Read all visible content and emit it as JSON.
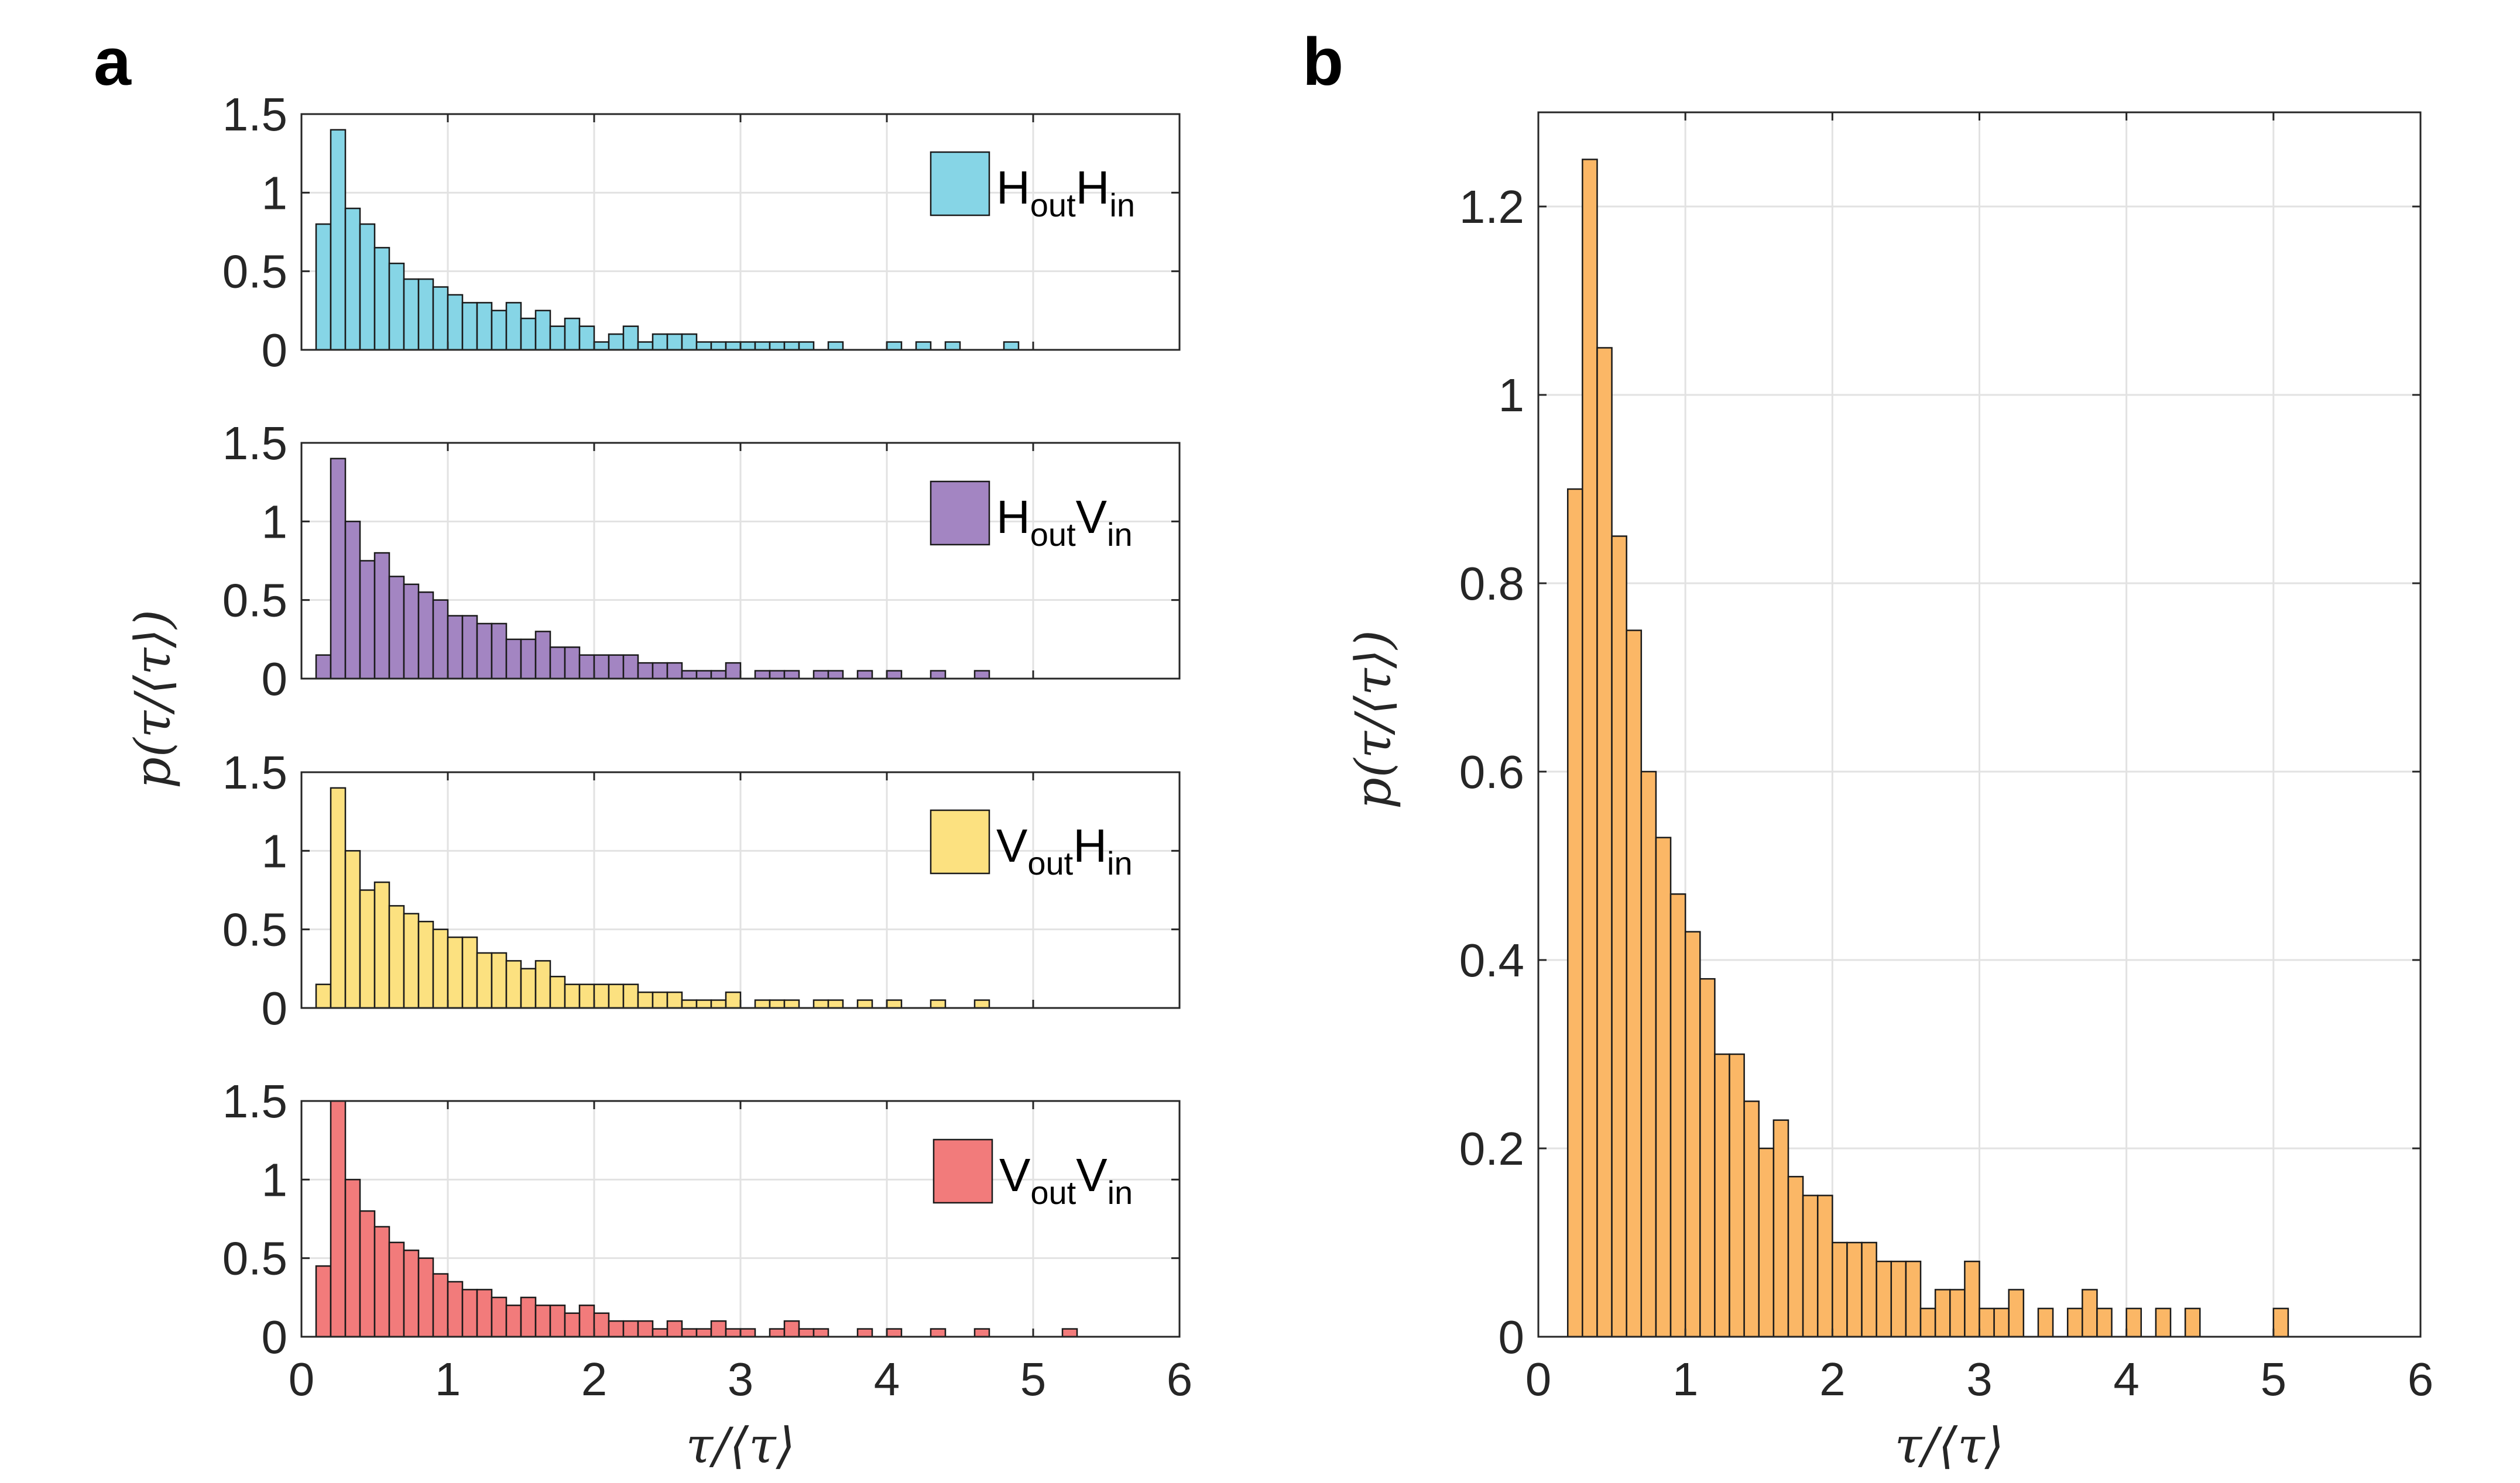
{
  "panels": {
    "a": {
      "label": "a"
    },
    "b": {
      "label": "b"
    }
  },
  "chart_data": [
    {
      "id": "a1",
      "type": "bar",
      "panel": "a",
      "legend": {
        "main1": "H",
        "sub1": "out",
        "main2": "H",
        "sub2": "in",
        "position": "top-right"
      },
      "color": "#86d5e6",
      "bin_width": 0.1,
      "x": [
        0.15,
        0.25,
        0.35,
        0.45,
        0.55,
        0.65,
        0.75,
        0.85,
        0.95,
        1.05,
        1.15,
        1.25,
        1.35,
        1.45,
        1.55,
        1.65,
        1.75,
        1.85,
        1.95,
        2.05,
        2.15,
        2.25,
        2.35,
        2.45,
        2.55,
        2.65,
        2.75,
        2.85,
        2.95,
        3.05,
        3.15,
        3.25,
        3.35,
        3.45,
        3.55,
        3.65,
        3.75,
        3.85,
        3.95,
        4.05,
        4.15,
        4.25,
        4.35,
        4.45,
        4.55,
        4.65,
        4.75,
        4.85,
        4.95
      ],
      "values": [
        0.8,
        1.4,
        0.9,
        0.8,
        0.65,
        0.55,
        0.45,
        0.45,
        0.4,
        0.35,
        0.3,
        0.3,
        0.25,
        0.3,
        0.2,
        0.25,
        0.15,
        0.2,
        0.15,
        0.05,
        0.1,
        0.15,
        0.05,
        0.1,
        0.1,
        0.1,
        0.05,
        0.05,
        0.05,
        0.05,
        0.05,
        0.05,
        0.05,
        0.05,
        0,
        0.05,
        0,
        0,
        0,
        0.05,
        0,
        0.05,
        0,
        0.05,
        0,
        0,
        0,
        0.05,
        0
      ],
      "xlim": [
        0,
        6
      ],
      "ylim": [
        0,
        1.5
      ],
      "yticks": [
        "0",
        "0.5",
        "1",
        "1.5"
      ],
      "ytick_values": [
        0,
        0.5,
        1,
        1.5
      ],
      "xticks": [],
      "xtick_values": [
        0,
        1,
        2,
        3,
        4,
        5,
        6
      ],
      "grid": true
    },
    {
      "id": "a2",
      "type": "bar",
      "panel": "a",
      "legend": {
        "main1": "H",
        "sub1": "out",
        "main2": "V",
        "sub2": "in",
        "position": "top-right"
      },
      "color": "#a385c2",
      "bin_width": 0.1,
      "x": [
        0.15,
        0.25,
        0.35,
        0.45,
        0.55,
        0.65,
        0.75,
        0.85,
        0.95,
        1.05,
        1.15,
        1.25,
        1.35,
        1.45,
        1.55,
        1.65,
        1.75,
        1.85,
        1.95,
        2.05,
        2.15,
        2.25,
        2.35,
        2.45,
        2.55,
        2.65,
        2.75,
        2.85,
        2.95,
        3.05,
        3.15,
        3.25,
        3.35,
        3.45,
        3.55,
        3.65,
        3.75,
        3.85,
        3.95,
        4.05,
        4.15,
        4.25,
        4.35,
        4.45,
        4.55,
        4.65
      ],
      "values": [
        0.15,
        1.4,
        1.0,
        0.75,
        0.8,
        0.65,
        0.6,
        0.55,
        0.5,
        0.4,
        0.4,
        0.35,
        0.35,
        0.25,
        0.25,
        0.3,
        0.2,
        0.2,
        0.15,
        0.15,
        0.15,
        0.15,
        0.1,
        0.1,
        0.1,
        0.05,
        0.05,
        0.05,
        0.1,
        0,
        0.05,
        0.05,
        0.05,
        0,
        0.05,
        0.05,
        0,
        0.05,
        0,
        0.05,
        0,
        0,
        0.05,
        0,
        0,
        0.05
      ],
      "xlim": [
        0,
        6
      ],
      "ylim": [
        0,
        1.5
      ],
      "yticks": [
        "0",
        "0.5",
        "1",
        "1.5"
      ],
      "ytick_values": [
        0,
        0.5,
        1,
        1.5
      ],
      "xticks": [],
      "xtick_values": [
        0,
        1,
        2,
        3,
        4,
        5,
        6
      ],
      "grid": true
    },
    {
      "id": "a3",
      "type": "bar",
      "panel": "a",
      "legend": {
        "main1": "V",
        "sub1": "out",
        "main2": "H",
        "sub2": "in",
        "position": "top-right"
      },
      "color": "#fce180",
      "bin_width": 0.1,
      "x": [
        0.15,
        0.25,
        0.35,
        0.45,
        0.55,
        0.65,
        0.75,
        0.85,
        0.95,
        1.05,
        1.15,
        1.25,
        1.35,
        1.45,
        1.55,
        1.65,
        1.75,
        1.85,
        1.95,
        2.05,
        2.15,
        2.25,
        2.35,
        2.45,
        2.55,
        2.65,
        2.75,
        2.85,
        2.95,
        3.05,
        3.15,
        3.25,
        3.35,
        3.45,
        3.55,
        3.65,
        3.75,
        3.85,
        3.95,
        4.05,
        4.15,
        4.25,
        4.35,
        4.45,
        4.55,
        4.65
      ],
      "values": [
        0.15,
        1.4,
        1.0,
        0.75,
        0.8,
        0.65,
        0.6,
        0.55,
        0.5,
        0.45,
        0.45,
        0.35,
        0.35,
        0.3,
        0.25,
        0.3,
        0.2,
        0.15,
        0.15,
        0.15,
        0.15,
        0.15,
        0.1,
        0.1,
        0.1,
        0.05,
        0.05,
        0.05,
        0.1,
        0,
        0.05,
        0.05,
        0.05,
        0,
        0.05,
        0.05,
        0,
        0.05,
        0,
        0.05,
        0,
        0,
        0.05,
        0,
        0,
        0.05
      ],
      "xlim": [
        0,
        6
      ],
      "ylim": [
        0,
        1.5
      ],
      "yticks": [
        "0",
        "0.5",
        "1",
        "1.5"
      ],
      "ytick_values": [
        0,
        0.5,
        1,
        1.5
      ],
      "xticks": [],
      "xtick_values": [
        0,
        1,
        2,
        3,
        4,
        5,
        6
      ],
      "grid": true
    },
    {
      "id": "a4",
      "type": "bar",
      "panel": "a",
      "legend": {
        "main1": "V",
        "sub1": "out",
        "main2": "V",
        "sub2": "in",
        "position": "top-right"
      },
      "color": "#f27b7b",
      "bin_width": 0.1,
      "x": [
        0.15,
        0.25,
        0.35,
        0.45,
        0.55,
        0.65,
        0.75,
        0.85,
        0.95,
        1.05,
        1.15,
        1.25,
        1.35,
        1.45,
        1.55,
        1.65,
        1.75,
        1.85,
        1.95,
        2.05,
        2.15,
        2.25,
        2.35,
        2.45,
        2.55,
        2.65,
        2.75,
        2.85,
        2.95,
        3.05,
        3.15,
        3.25,
        3.35,
        3.45,
        3.55,
        3.65,
        3.75,
        3.85,
        3.95,
        4.05,
        4.15,
        4.25,
        4.35,
        4.45,
        4.55,
        4.65,
        4.75,
        4.85,
        4.95,
        5.05,
        5.15,
        5.25
      ],
      "values": [
        0.45,
        1.5,
        1.0,
        0.8,
        0.7,
        0.6,
        0.55,
        0.5,
        0.4,
        0.35,
        0.3,
        0.3,
        0.25,
        0.2,
        0.25,
        0.2,
        0.2,
        0.15,
        0.2,
        0.15,
        0.1,
        0.1,
        0.1,
        0.05,
        0.1,
        0.05,
        0.05,
        0.1,
        0.05,
        0.05,
        0,
        0.05,
        0.1,
        0.05,
        0.05,
        0,
        0,
        0.05,
        0,
        0.05,
        0,
        0,
        0.05,
        0,
        0,
        0.05,
        0,
        0,
        0,
        0,
        0,
        0.05
      ],
      "xlim": [
        0,
        6
      ],
      "ylim": [
        0,
        1.5
      ],
      "yticks": [
        "0",
        "0.5",
        "1",
        "1.5"
      ],
      "ytick_values": [
        0,
        0.5,
        1,
        1.5
      ],
      "xticks": [
        "0",
        "1",
        "2",
        "3",
        "4",
        "5",
        "6"
      ],
      "xtick_values": [
        0,
        1,
        2,
        3,
        4,
        5,
        6
      ],
      "grid": true
    },
    {
      "id": "b",
      "type": "bar",
      "panel": "b",
      "color": "#fbb766",
      "bin_width": 0.1,
      "x": [
        0.25,
        0.35,
        0.45,
        0.55,
        0.65,
        0.75,
        0.85,
        0.95,
        1.05,
        1.15,
        1.25,
        1.35,
        1.45,
        1.55,
        1.65,
        1.75,
        1.85,
        1.95,
        2.05,
        2.15,
        2.25,
        2.35,
        2.45,
        2.55,
        2.65,
        2.75,
        2.85,
        2.95,
        3.05,
        3.15,
        3.25,
        3.35,
        3.45,
        3.55,
        3.65,
        3.75,
        3.85,
        3.95,
        4.05,
        4.15,
        4.25,
        4.35,
        4.45,
        4.55,
        4.65,
        4.75,
        4.85,
        4.95,
        5.05,
        5.15
      ],
      "values": [
        0.9,
        1.25,
        1.05,
        0.85,
        0.75,
        0.6,
        0.53,
        0.47,
        0.43,
        0.38,
        0.3,
        0.3,
        0.25,
        0.2,
        0.23,
        0.17,
        0.15,
        0.15,
        0.1,
        0.1,
        0.1,
        0.08,
        0.08,
        0.08,
        0.03,
        0.05,
        0.05,
        0.08,
        0.03,
        0.03,
        0.05,
        0,
        0.03,
        0,
        0.03,
        0.05,
        0.03,
        0,
        0.03,
        0,
        0.03,
        0,
        0.03,
        0,
        0,
        0,
        0,
        0,
        0.03,
        0
      ],
      "xlim": [
        0,
        6
      ],
      "ylim": [
        0,
        1.3
      ],
      "yticks": [
        "0",
        "0.2",
        "0.4",
        "0.6",
        "0.8",
        "1",
        "1.2"
      ],
      "ytick_values": [
        0,
        0.2,
        0.4,
        0.6,
        0.8,
        1,
        1.2
      ],
      "xticks": [
        "0",
        "1",
        "2",
        "3",
        "4",
        "5",
        "6"
      ],
      "xtick_values": [
        0,
        1,
        2,
        3,
        4,
        5,
        6
      ],
      "grid": true
    }
  ],
  "labels": {
    "a_ylabel": "p(τ/⟨τ⟩)",
    "a_xlabel": "τ/⟨τ⟩",
    "b_ylabel": "p(τ/⟨τ⟩)",
    "b_xlabel": "τ/⟨τ⟩"
  }
}
